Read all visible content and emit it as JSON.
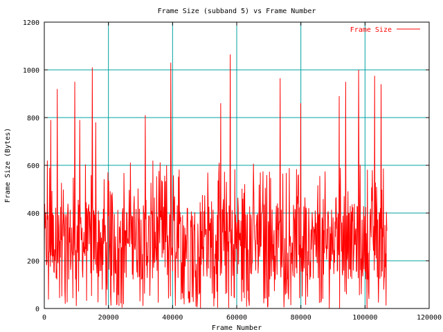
{
  "chart_data": {
    "type": "line",
    "title": "Frame Size (subband 5) vs Frame Number",
    "xlabel": "Frame Number",
    "ylabel": "Frame Size (Bytes)",
    "xlim": [
      0,
      120000
    ],
    "ylim": [
      0,
      1200
    ],
    "x_ticks": [
      0,
      20000,
      40000,
      60000,
      80000,
      100000,
      120000
    ],
    "y_ticks": [
      0,
      200,
      400,
      600,
      800,
      1000,
      1200
    ],
    "x_tick_labels": [
      "0",
      "20000",
      "40000",
      "60000",
      "80000",
      "100000",
      "120000"
    ],
    "y_tick_labels": [
      "0",
      "200",
      "400",
      "600",
      "800",
      "1000",
      "1200"
    ],
    "grid": true,
    "grid_color": "#00a0a0",
    "legend": {
      "position": "top-right"
    },
    "series": [
      {
        "name": "Frame Size",
        "color": "#ff0000",
        "x_range": [
          0,
          106800
        ],
        "approx_point_count": 900,
        "typical_range": [
          0,
          600
        ],
        "peaks": [
          {
            "x": 1000,
            "y": 620
          },
          {
            "x": 2000,
            "y": 790
          },
          {
            "x": 4000,
            "y": 920
          },
          {
            "x": 9500,
            "y": 950
          },
          {
            "x": 11000,
            "y": 790
          },
          {
            "x": 15000,
            "y": 1010
          },
          {
            "x": 16000,
            "y": 780
          },
          {
            "x": 31500,
            "y": 810
          },
          {
            "x": 39500,
            "y": 1030
          },
          {
            "x": 55000,
            "y": 860
          },
          {
            "x": 58000,
            "y": 1065
          },
          {
            "x": 73500,
            "y": 965
          },
          {
            "x": 80000,
            "y": 860
          },
          {
            "x": 92000,
            "y": 890
          },
          {
            "x": 94000,
            "y": 950
          },
          {
            "x": 98000,
            "y": 1000
          },
          {
            "x": 103000,
            "y": 975
          },
          {
            "x": 105000,
            "y": 940
          }
        ]
      }
    ]
  }
}
